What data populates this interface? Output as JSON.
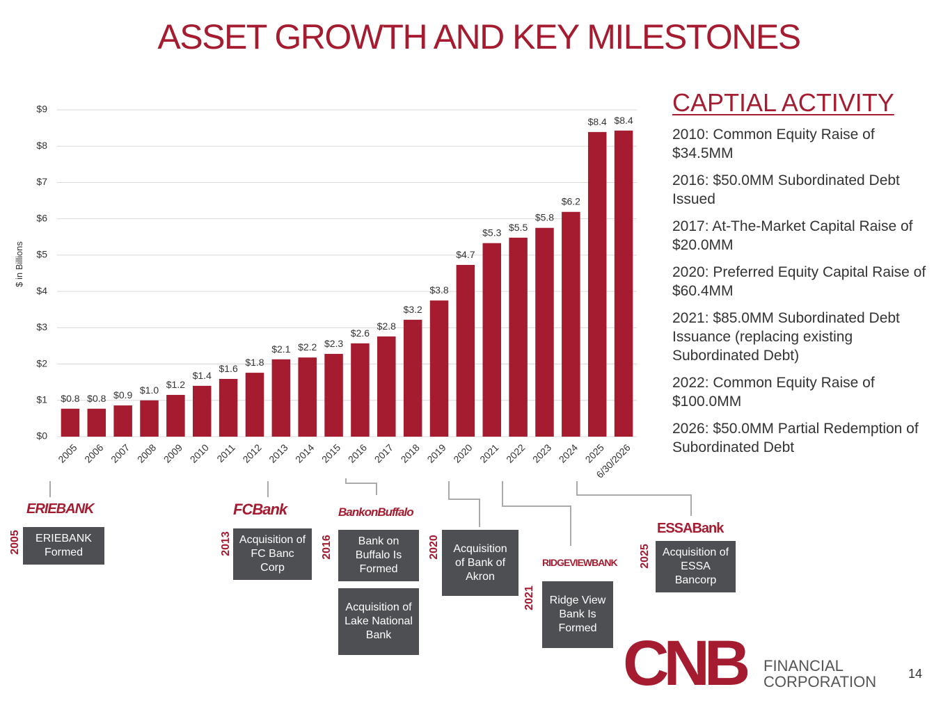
{
  "title": "ASSET GROWTH AND KEY MILESTONES",
  "chart_data": {
    "type": "bar",
    "ylabel": "$ in Billions",
    "color": "#a51c30",
    "grid": true,
    "categories": [
      "2005",
      "2006",
      "2007",
      "2008",
      "2009",
      "2010",
      "2011",
      "2012",
      "2013",
      "2014",
      "2015",
      "2016",
      "2017",
      "2018",
      "2019",
      "2020",
      "2021",
      "2022",
      "2023",
      "2024",
      "2025",
      "6/30/2026"
    ],
    "values": [
      0.77,
      0.77,
      0.86,
      1.0,
      1.15,
      1.4,
      1.59,
      1.76,
      2.13,
      2.18,
      2.28,
      2.57,
      2.76,
      3.22,
      3.75,
      4.73,
      5.33,
      5.48,
      5.75,
      6.19,
      8.39,
      8.43
    ],
    "value_labels": [
      "$0.8",
      "$0.8",
      "$0.9",
      "$1.0",
      "$1.2",
      "$1.4",
      "$1.6",
      "$1.8",
      "$2.1",
      "$2.2",
      "$2.3",
      "$2.6",
      "$2.8",
      "$3.2",
      "$3.8",
      "$4.7",
      "$5.3",
      "$5.5",
      "$5.8",
      "$6.2",
      "$8.4",
      "$8.4"
    ],
    "ylim": [
      0,
      9
    ],
    "yticks": [
      {
        "value": 0,
        "label": "$0"
      },
      {
        "value": 1,
        "label": "$1"
      },
      {
        "value": 2,
        "label": "$2"
      },
      {
        "value": 3,
        "label": "$3"
      },
      {
        "value": 4,
        "label": "$4"
      },
      {
        "value": 5,
        "label": "$5"
      },
      {
        "value": 6,
        "label": "$6"
      },
      {
        "value": 7,
        "label": "$7"
      },
      {
        "value": 8,
        "label": "$8"
      },
      {
        "value": 9,
        "label": "$9"
      }
    ]
  },
  "capital_activity": {
    "heading": "CAPTIAL ACTIVITY",
    "items": [
      "2010: Common Equity Raise of $34.5MM",
      "2016: $50.0MM Subordinated Debt Issued",
      "2017: At-The-Market Capital Raise of $20.0MM",
      "2020: Preferred Equity Capital Raise of $60.4MM",
      "2021: $85.0MM Subordinated Debt Issuance (replacing existing Subordinated Debt)",
      "2022: Common Equity Raise of $100.0MM",
      "2026: $50.0MM Partial Redemption of Subordinated Debt"
    ]
  },
  "milestones": [
    {
      "year": "2005",
      "logo": "ERIEBANK",
      "events": [
        "ERIEBANK Formed"
      ]
    },
    {
      "year": "2013",
      "logo": "FCBank",
      "events": [
        "Acquisition of FC Banc Corp"
      ]
    },
    {
      "year": "2016",
      "logo": "BankonBuffalo",
      "events": [
        "Bank on Buffalo Is Formed",
        "Acquisition of Lake National Bank"
      ]
    },
    {
      "year": "2020",
      "events": [
        "Acquisition of Bank of Akron"
      ]
    },
    {
      "year": "2021",
      "logo": "RIDGEVIEWBANK",
      "events": [
        "Ridge View Bank Is Formed"
      ]
    },
    {
      "year": "2025",
      "logo": "ESSABank",
      "events": [
        "Acquisition of ESSA Bancorp"
      ]
    }
  ],
  "company_logo": {
    "mark": "CNB",
    "line1": "FINANCIAL",
    "line2": "CORPORATION"
  },
  "page_number": "14"
}
